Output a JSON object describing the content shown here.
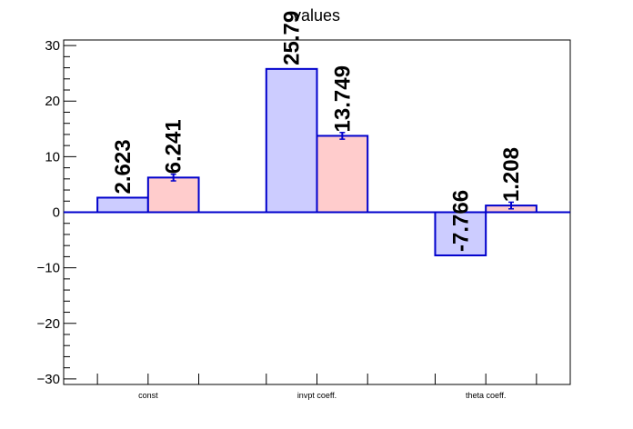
{
  "chart_data": {
    "type": "bar",
    "title": "values",
    "categories": [
      "const",
      "invpt coeff.",
      "theta coeff."
    ],
    "series": [
      {
        "values": [
          2.623,
          25.79,
          -7.766
        ],
        "value_labels": [
          "2.623",
          "25.79",
          "-7.766"
        ],
        "errors": [
          0,
          0,
          0
        ],
        "fill": "#ccccff"
      },
      {
        "values": [
          6.241,
          13.749,
          1.208
        ],
        "value_labels": [
          "6.241",
          "13.749",
          "1.208"
        ],
        "errors": [
          0.6,
          0.6,
          0.6
        ],
        "fill": "#ffcccc"
      }
    ],
    "ylim": [
      -31,
      31
    ],
    "y_ticks": [
      -30,
      -20,
      -10,
      0,
      10,
      20,
      30
    ],
    "y_tick_labels": [
      "−30",
      "−20",
      "−10",
      "0",
      "10",
      "20",
      "30"
    ],
    "grid": false,
    "colors": {
      "outline": "#0000cc",
      "axis": "#000000"
    }
  }
}
